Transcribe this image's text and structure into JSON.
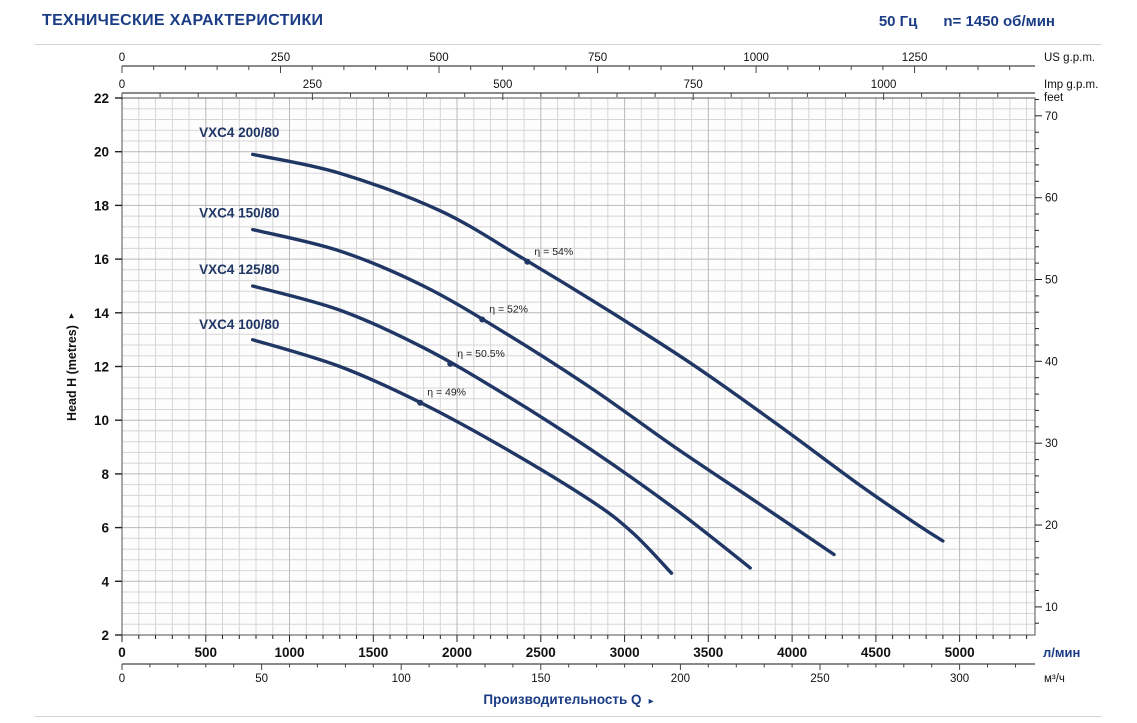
{
  "header": {
    "title": "ТЕХНИЧЕСКИЕ ХАРАКТЕРИСТИКИ",
    "frequency": "50 Гц",
    "speed": "n= 1450 об/мин"
  },
  "icons": {
    "arrow_right": "▸"
  },
  "colors": {
    "title_blue": "#1a3c85",
    "curve_navy": "#203765",
    "grid_minor": "#d6d6d6",
    "grid_major": "#b9b9b9",
    "plot_border": "#6e6e6e",
    "axis_dark": "#222222"
  },
  "chart_data": {
    "type": "line",
    "title": "",
    "x_label": "Производительность Q",
    "y_label": "Head H (metres)",
    "y_right_label": "feet",
    "xlim_lpm": [
      0,
      5450
    ],
    "ylim_m": [
      2,
      22
    ],
    "grid": true,
    "x_axis_lpm": {
      "label": "л/мин",
      "min": 0,
      "max": 5450,
      "major_tick_step": 500,
      "minor_tick_step": 100,
      "tick_labels": [
        0,
        500,
        1000,
        1500,
        2000,
        2500,
        3000,
        3500,
        4000,
        4500,
        5000
      ]
    },
    "x_axis_m3h": {
      "label": "м³/ч",
      "minor_tick_step": 10,
      "major_tick_step": 50,
      "lpm_per_unit": 16.6667,
      "tick_labels": [
        0,
        50,
        100,
        150,
        200,
        250,
        300
      ]
    },
    "top_axes": [
      {
        "label": "US g.p.m.",
        "minor_tick_step": 50,
        "lpm_per_unit": 3.785,
        "tick_labels": [
          0,
          250,
          500,
          750,
          1000,
          1250
        ]
      },
      {
        "label": "Imp g.p.m.",
        "minor_tick_step": 50,
        "lpm_per_unit": 4.546,
        "tick_labels": [
          0,
          250,
          500,
          750,
          1000
        ]
      }
    ],
    "y_axis_m": {
      "min": 2,
      "max": 22,
      "major_tick_step": 2,
      "minor_tick_step": 0.4,
      "tick_labels": [
        2,
        4,
        6,
        8,
        10,
        12,
        14,
        16,
        18,
        20,
        22
      ]
    },
    "y_axis_feet": {
      "m_per_unit": 0.3048,
      "minor_tick_step": 2,
      "tick_labels": [
        10,
        20,
        30,
        40,
        50,
        60,
        70
      ]
    },
    "series": [
      {
        "name": "VXC4 200/80",
        "label_q": 460,
        "label_h": 20.55,
        "points": [
          [
            780,
            19.9
          ],
          [
            1300,
            19.2
          ],
          [
            1900,
            17.8
          ],
          [
            2400,
            16.0
          ],
          [
            2900,
            14.1
          ],
          [
            3400,
            12.1
          ],
          [
            3900,
            9.9
          ],
          [
            4400,
            7.6
          ],
          [
            4750,
            6.1
          ],
          [
            4900,
            5.5
          ]
        ]
      },
      {
        "name": "VXC4 150/80",
        "label_q": 460,
        "label_h": 17.55,
        "points": [
          [
            780,
            17.1
          ],
          [
            1300,
            16.3
          ],
          [
            1800,
            15.0
          ],
          [
            2300,
            13.2
          ],
          [
            2800,
            11.2
          ],
          [
            3300,
            9.0
          ],
          [
            3800,
            6.9
          ],
          [
            4250,
            5.0
          ]
        ]
      },
      {
        "name": "VXC4 125/80",
        "label_q": 460,
        "label_h": 15.45,
        "points": [
          [
            780,
            15.0
          ],
          [
            1300,
            14.1
          ],
          [
            1800,
            12.7
          ],
          [
            2300,
            10.9
          ],
          [
            2800,
            8.9
          ],
          [
            3300,
            6.7
          ],
          [
            3750,
            4.5
          ]
        ]
      },
      {
        "name": "VXC4 100/80",
        "label_q": 460,
        "label_h": 13.4,
        "points": [
          [
            780,
            13.0
          ],
          [
            1300,
            12.0
          ],
          [
            1800,
            10.6
          ],
          [
            2300,
            8.9
          ],
          [
            2800,
            7.0
          ],
          [
            3050,
            5.8
          ],
          [
            3280,
            4.3
          ]
        ]
      }
    ],
    "efficiency_markers": [
      {
        "label": "η = 54%",
        "q": 2420,
        "h": 15.9
      },
      {
        "label": "η = 52%",
        "q": 2150,
        "h": 13.75
      },
      {
        "label": "η = 50.5%",
        "q": 1960,
        "h": 12.1
      },
      {
        "label": "η = 49%",
        "q": 1780,
        "h": 10.65
      }
    ]
  }
}
